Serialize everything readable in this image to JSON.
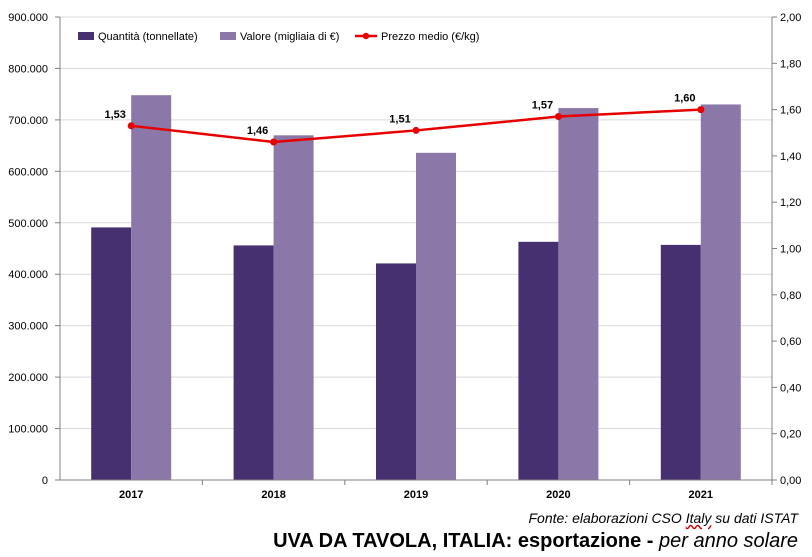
{
  "chart_data": {
    "type": "bar",
    "categories": [
      "2017",
      "2018",
      "2019",
      "2020",
      "2021"
    ],
    "series": [
      {
        "name": "Quantità (tonnellate)",
        "type": "bar",
        "axis": "left",
        "color": "#46306f",
        "values": [
          491000,
          456000,
          421000,
          463000,
          457000
        ]
      },
      {
        "name": "Valore (migliaia di €)",
        "type": "bar",
        "axis": "left",
        "color": "#8b77a8",
        "values": [
          748000,
          670000,
          636000,
          723000,
          730000
        ]
      },
      {
        "name": "Prezzo medio (€/kg)",
        "type": "line",
        "axis": "right",
        "color": "#e60000",
        "values": [
          1.53,
          1.46,
          1.51,
          1.57,
          1.6
        ],
        "labels": [
          "1,53",
          "1,46",
          "1,51",
          "1,57",
          "1,60"
        ]
      }
    ],
    "ylim_left": [
      0,
      900000
    ],
    "ylim_right": [
      0,
      2.0
    ],
    "left_ticks": [
      "0",
      "100.000",
      "200.000",
      "300.000",
      "400.000",
      "500.000",
      "600.000",
      "700.000",
      "800.000",
      "900.000"
    ],
    "right_ticks": [
      "0,00",
      "0,20",
      "0,40",
      "0,60",
      "0,80",
      "1,00",
      "1,20",
      "1,40",
      "1,60",
      "1,80",
      "2,00"
    ],
    "grid": true,
    "legend_position": "top-left"
  },
  "source": {
    "prefix": "Fonte: elaborazioni CSO ",
    "underlined": "Italy",
    "suffix": " su dati ISTAT"
  },
  "title": {
    "main": "UVA DA TAVOLA, ITALIA: esportazione",
    "separator": " - ",
    "sub": "per anno solare"
  }
}
